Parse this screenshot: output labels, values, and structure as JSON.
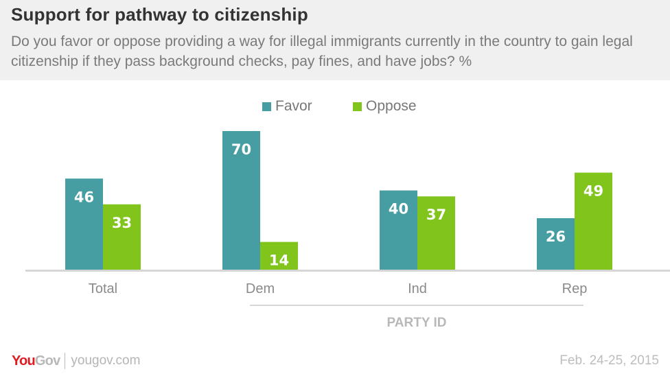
{
  "header": {
    "title": "Support for pathway to citizenship",
    "subtitle": "Do you favor or oppose providing a way for illegal immigrants currently in the country to gain legal citizenship if they pass background checks, pay fines, and have jobs? %"
  },
  "footer": {
    "brand_you": "You",
    "brand_gov": "Gov",
    "url": "yougov.com",
    "date": "Feb. 24-25, 2015"
  },
  "chart_data": {
    "type": "bar",
    "title": "Support for pathway to citizenship",
    "xlabel": "",
    "ylabel": "%",
    "ylim": [
      0,
      70
    ],
    "grid": false,
    "legend_position": "top-center",
    "categories": [
      "Total",
      "Dem",
      "Ind",
      "Rep"
    ],
    "group_label": {
      "text": "PARTY ID",
      "applies_to": [
        "Dem",
        "Ind",
        "Rep"
      ]
    },
    "series": [
      {
        "name": "Favor",
        "color": "#469ea2",
        "values": [
          46,
          70,
          40,
          26
        ]
      },
      {
        "name": "Oppose",
        "color": "#80c41c",
        "values": [
          33,
          14,
          37,
          49
        ]
      }
    ]
  }
}
